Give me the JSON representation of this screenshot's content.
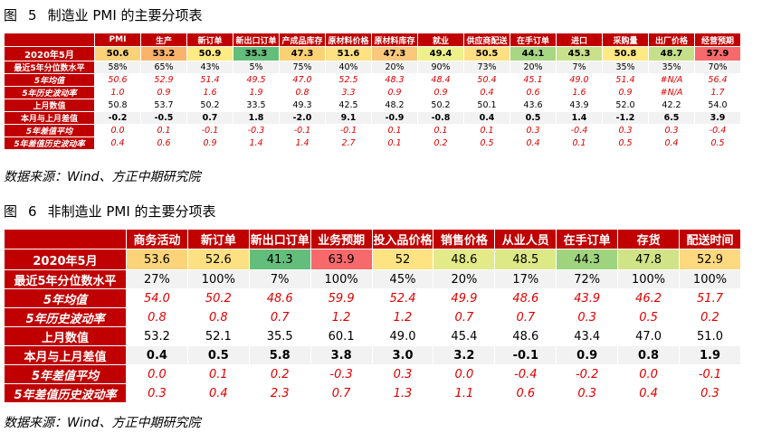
{
  "table1": {
    "caption_prefix": "图",
    "caption_number": "5",
    "caption_title": "制造业 PMI 的主要分项表",
    "source": "数据来源：Wind、方正中期研究院",
    "columns": [
      "PMI",
      "生产",
      "新订单",
      "新出口订单",
      "产成品库存",
      "原材料价格",
      "原材料库存",
      "就业",
      "供应商配送",
      "在手订单",
      "进口",
      "采购量",
      "出厂价格",
      "经营预期"
    ],
    "rows": [
      {
        "label": "2020年5月",
        "values": [
          "50.6",
          "53.2",
          "50.9",
          "35.3",
          "47.3",
          "51.6",
          "47.3",
          "49.4",
          "50.5",
          "44.1",
          "45.3",
          "50.8",
          "48.7",
          "57.9"
        ],
        "colors": [
          "#f9d27a",
          "#fbb36b",
          "#ffeb84",
          "#63be7b",
          "#fbd173",
          "#fee183",
          "#fbc87b",
          "#eef08c",
          "#fee082",
          "#a8d783",
          "#c8e18a",
          "#ffe984",
          "#c6e08a",
          "#f8696b"
        ]
      },
      {
        "label": "最近5年分位数水平",
        "values": [
          "58%",
          "65%",
          "43%",
          "5%",
          "75%",
          "40%",
          "20%",
          "90%",
          "73%",
          "20%",
          "7%",
          "35%",
          "35%",
          "70%"
        ]
      },
      {
        "label": "5年均值",
        "values": [
          "50.6",
          "52.9",
          "51.4",
          "49.5",
          "47.0",
          "52.5",
          "48.3",
          "48.4",
          "50.4",
          "45.1",
          "49.0",
          "51.4",
          "#N/A",
          "56.4"
        ]
      },
      {
        "label": "5年历史波动率",
        "values": [
          "1.0",
          "0.9",
          "1.6",
          "1.9",
          "0.8",
          "3.3",
          "0.9",
          "0.9",
          "0.4",
          "0.6",
          "1.6",
          "0.9",
          "#N/A",
          "1.7"
        ]
      },
      {
        "label": "上月数值",
        "values": [
          "50.8",
          "53.7",
          "50.2",
          "33.5",
          "49.3",
          "42.5",
          "48.2",
          "50.2",
          "50.1",
          "43.6",
          "43.9",
          "52.0",
          "42.2",
          "54.0"
        ]
      },
      {
        "label": "本月与上月差值",
        "values": [
          "-0.2",
          "-0.5",
          "0.7",
          "1.8",
          "-2.0",
          "9.1",
          "-0.9",
          "-0.8",
          "0.4",
          "0.5",
          "1.4",
          "-1.2",
          "6.5",
          "3.9"
        ]
      },
      {
        "label": "5年差值平均",
        "values": [
          "0.0",
          "0.1",
          "-0.1",
          "-0.3",
          "-0.1",
          "-0.1",
          "0.1",
          "0.1",
          "0.1",
          "0.3",
          "-0.4",
          "0.3",
          "0.3",
          "-0.4"
        ]
      },
      {
        "label": "5年差值历史波动率",
        "values": [
          "0.4",
          "0.6",
          "0.9",
          "1.4",
          "1.4",
          "2.7",
          "0.1",
          "0.2",
          "0.5",
          "0.4",
          "0.1",
          "0.5",
          "0.4",
          "0.5"
        ]
      }
    ]
  },
  "table2": {
    "caption_prefix": "图",
    "caption_number": "6",
    "caption_title": "非制造业 PMI 的主要分项表",
    "source": "数据来源：Wind、方正中期研究院",
    "columns": [
      "商务活动",
      "新订单",
      "新出口订单",
      "业务预期",
      "投入品价格",
      "销售价格",
      "从业人员",
      "在手订单",
      "存货",
      "配送时间"
    ],
    "rows": [
      {
        "label": "2020年5月",
        "values": [
          "53.6",
          "52.6",
          "41.3",
          "63.9",
          "52",
          "48.6",
          "48.5",
          "44.3",
          "47.8",
          "52.9"
        ],
        "colors": [
          "#fbd47a",
          "#fde081",
          "#63be7b",
          "#f8696b",
          "#fee383",
          "#e3ea88",
          "#dde887",
          "#9fd47f",
          "#d0e386",
          "#fed980"
        ]
      },
      {
        "label": "最近5年分位数水平",
        "values": [
          "27%",
          "100%",
          "7%",
          "100%",
          "45%",
          "20%",
          "17%",
          "72%",
          "100%",
          "100%"
        ]
      },
      {
        "label": "5年均值",
        "values": [
          "54.0",
          "50.2",
          "48.6",
          "59.9",
          "52.4",
          "49.9",
          "48.6",
          "43.9",
          "46.2",
          "51.7"
        ]
      },
      {
        "label": "5年历史波动率",
        "values": [
          "0.8",
          "0.8",
          "0.7",
          "1.2",
          "1.2",
          "0.7",
          "0.7",
          "0.3",
          "0.5",
          "0.2"
        ]
      },
      {
        "label": "上月数值",
        "values": [
          "53.2",
          "52.1",
          "35.5",
          "60.1",
          "49.0",
          "45.4",
          "48.6",
          "43.4",
          "47.0",
          "51.0"
        ]
      },
      {
        "label": "本月与上月差值",
        "values": [
          "0.4",
          "0.5",
          "5.8",
          "3.8",
          "3.0",
          "3.2",
          "-0.1",
          "0.9",
          "0.8",
          "1.9"
        ]
      },
      {
        "label": "5年差值平均",
        "values": [
          "0.0",
          "0.1",
          "0.2",
          "-0.3",
          "0.3",
          "0.0",
          "-0.4",
          "-0.2",
          "0.0",
          "-0.1"
        ]
      },
      {
        "label": "5年差值历史波动率",
        "values": [
          "0.3",
          "0.4",
          "2.3",
          "0.7",
          "1.3",
          "1.1",
          "0.6",
          "0.3",
          "0.4",
          "0.3"
        ]
      }
    ]
  },
  "colors": {
    "header_red": "#c00000",
    "value_red": "#e00000",
    "grey_row": "#f2f2f2"
  }
}
